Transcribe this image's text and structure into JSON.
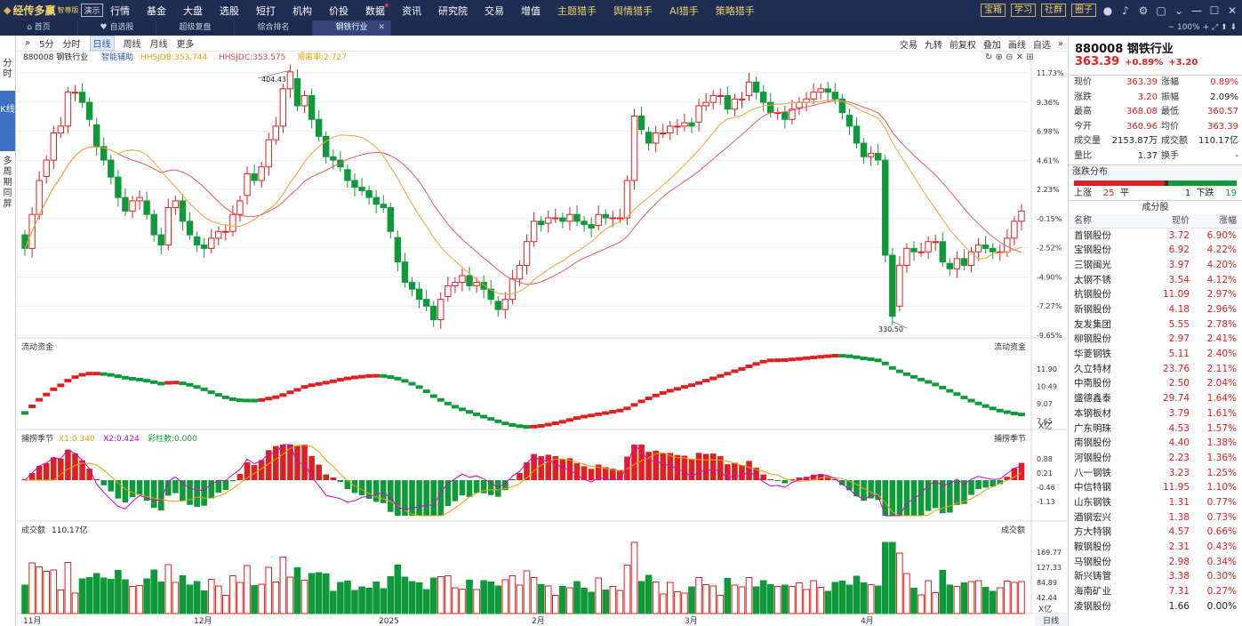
{
  "app": {
    "name": "经传多赢",
    "edition": "智尊版",
    "demo_badge": "演示"
  },
  "menu": [
    "行情",
    "基金",
    "大盘",
    "选股",
    "短打",
    "机构",
    "价投",
    "数据",
    "资讯",
    "研究院",
    "交易",
    "增值",
    "主题猎手",
    "舆情猎手",
    "AI猎手",
    "策略猎手"
  ],
  "top_buttons": [
    "宝箱",
    "学习",
    "社群",
    "圈子"
  ],
  "tabs": [
    {
      "label": "首页"
    },
    {
      "label": "自选股"
    },
    {
      "label": "超级复盘"
    },
    {
      "label": "综合排名"
    },
    {
      "label": "钢铁行业"
    }
  ],
  "zoom": "100%",
  "left_side": {
    "fenshi": "分时",
    "kxian": "K线",
    "duozhouqi": "多周期同屏"
  },
  "toolbar": {
    "periods": [
      "5分",
      "分时",
      "日线",
      "周线",
      "月线",
      "更多"
    ],
    "selected": "日线",
    "right": [
      "交易",
      "九转",
      "前复权",
      "叠加",
      "画线",
      "自选"
    ]
  },
  "main_info": {
    "code_name": "880008 钢铁行业",
    "assist": "智能辅助",
    "hhsjdb": "HHSJDB:353.744",
    "hhsjdc": "HHSJDC:353.575",
    "break": "顶离率:2.727"
  },
  "price_axis": [
    "11.73%",
    "9.36%",
    "6.98%",
    "4.61%",
    "2.23%",
    "-0.15%",
    "-2.52%",
    "-4.90%",
    "-7.27%",
    "-9.65%"
  ],
  "annotations": {
    "high": "404.43",
    "low": "330.50"
  },
  "sub1": {
    "title": "流动资金",
    "right_title": "流动资金",
    "axis": [
      "11.90",
      "10.49",
      "9.07",
      "7.65"
    ],
    "unit": "X亿"
  },
  "sub2": {
    "title": "捕捞季节",
    "x1": "X1:0.340",
    "x2": "X2:0.424",
    "bar": "彩柱数:0.000",
    "right_title": "捕捞季节",
    "axis": [
      "0.88",
      "0.21",
      "-0.46",
      "-1.13"
    ]
  },
  "sub3": {
    "title": "成交额",
    "value": "110.17亿",
    "right_title": "成交额",
    "axis": [
      "169.77",
      "127.33",
      "84.89",
      "42.44"
    ],
    "unit": "X亿"
  },
  "x_axis": [
    "11月",
    "12月",
    "2025",
    "2月",
    "3月",
    "4月"
  ],
  "x_mode": "日线",
  "colors": {
    "up": "#e02020",
    "down": "#0f9a3a",
    "ma1": "#e85a5a",
    "ma2": "#f2a23a"
  },
  "quote": {
    "title": "880008 钢铁行业",
    "price": "363.39",
    "chg_pct": "+0.89%",
    "chg": "+3.20",
    "rows": [
      {
        "k": "现价",
        "v": "363.39",
        "k2": "涨幅",
        "v2": "0.89%"
      },
      {
        "k": "涨跌",
        "v": "3.20",
        "k2": "振幅",
        "v2": "2.09%"
      },
      {
        "k": "最高",
        "v": "368.08",
        "k2": "最低",
        "v2": "360.57"
      },
      {
        "k": "今开",
        "v": "360.96",
        "k2": "均价",
        "v2": "363.39"
      },
      {
        "k": "成交量",
        "v": "2153.87万",
        "k2": "成交额",
        "v2": "110.17亿"
      },
      {
        "k": "量比",
        "v": "1.37",
        "k2": "换手",
        "v2": "-"
      }
    ],
    "dist_title": "涨跌分布",
    "dist": {
      "up_label": "上涨",
      "up": "25",
      "flat_label": "平",
      "flat": "1",
      "down_label": "下跌",
      "down": "19"
    }
  },
  "constituents": {
    "title": "成分股",
    "headers": [
      "名称",
      "现价",
      "涨幅"
    ],
    "rows": [
      [
        "首钢股份",
        "3.72",
        "6.90%"
      ],
      [
        "宝钢股份",
        "6.92",
        "4.22%"
      ],
      [
        "三钢闽光",
        "3.97",
        "4.20%"
      ],
      [
        "太钢不锈",
        "3.54",
        "4.12%"
      ],
      [
        "杭钢股份",
        "11.09",
        "2.97%"
      ],
      [
        "新钢股份",
        "4.18",
        "2.96%"
      ],
      [
        "友发集团",
        "5.55",
        "2.78%"
      ],
      [
        "柳钢股份",
        "2.97",
        "2.41%"
      ],
      [
        "华菱钢铁",
        "5.11",
        "2.40%"
      ],
      [
        "久立特材",
        "23.76",
        "2.11%"
      ],
      [
        "中南股份",
        "2.50",
        "2.04%"
      ],
      [
        "盛德鑫泰",
        "29.74",
        "1.64%"
      ],
      [
        "本钢板材",
        "3.79",
        "1.61%"
      ],
      [
        "广东明珠",
        "4.53",
        "1.57%"
      ],
      [
        "南钢股份",
        "4.40",
        "1.38%"
      ],
      [
        "河钢股份",
        "2.23",
        "1.36%"
      ],
      [
        "八一钢铁",
        "3.23",
        "1.25%"
      ],
      [
        "中信特钢",
        "11.95",
        "1.10%"
      ],
      [
        "山东钢铁",
        "1.31",
        "0.77%"
      ],
      [
        "酒钢宏兴",
        "1.38",
        "0.73%"
      ],
      [
        "方大特钢",
        "4.57",
        "0.66%"
      ],
      [
        "鞍钢股份",
        "2.31",
        "0.43%"
      ],
      [
        "马钢股份",
        "2.98",
        "0.34%"
      ],
      [
        "新兴铸管",
        "3.38",
        "0.30%"
      ],
      [
        "海南矿业",
        "7.31",
        "0.27%"
      ],
      [
        "凌钢股份",
        "1.66",
        "0.00%"
      ]
    ]
  },
  "chart_data": {
    "type": "candlestick",
    "x_labels": [
      "11月",
      "12月",
      "2025",
      "2月",
      "3月",
      "4月"
    ],
    "y_ticks_pct": [
      "11.73%",
      "9.36%",
      "6.98%",
      "4.61%",
      "2.23%",
      "-0.15%",
      "-2.52%",
      "-4.90%",
      "-7.27%",
      "-9.65%"
    ],
    "high_mark": 404.43,
    "low_mark": 330.5,
    "closes": [
      352,
      362,
      372,
      378,
      386,
      388,
      398,
      398,
      395,
      390,
      382,
      378,
      373,
      367,
      363,
      366,
      367,
      362,
      356,
      353,
      364,
      366,
      360,
      356,
      353,
      352,
      355,
      357,
      357,
      362,
      366,
      374,
      372,
      376,
      384,
      388,
      399,
      404,
      394,
      397,
      390,
      385,
      379,
      378,
      376,
      372,
      370,
      369,
      367,
      365,
      364,
      357,
      348,
      342,
      340,
      337,
      335,
      331,
      337,
      341,
      342,
      344,
      341,
      342,
      340,
      337,
      334,
      337,
      343,
      347,
      354,
      360,
      359,
      361,
      361,
      360,
      362,
      360,
      359,
      358,
      362,
      361,
      361,
      361,
      372,
      391,
      387,
      383,
      386,
      386,
      388,
      388,
      389,
      388,
      394,
      395,
      397,
      397,
      393,
      396,
      396,
      401,
      398,
      395,
      392,
      392,
      390,
      393,
      395,
      396,
      398,
      399,
      398,
      396,
      392,
      388,
      383,
      379,
      380,
      378,
      350,
      332,
      347,
      352,
      351,
      351,
      354,
      354,
      348,
      346,
      349,
      347,
      351,
      353,
      352,
      351,
      351,
      355,
      360,
      363
    ]
  }
}
